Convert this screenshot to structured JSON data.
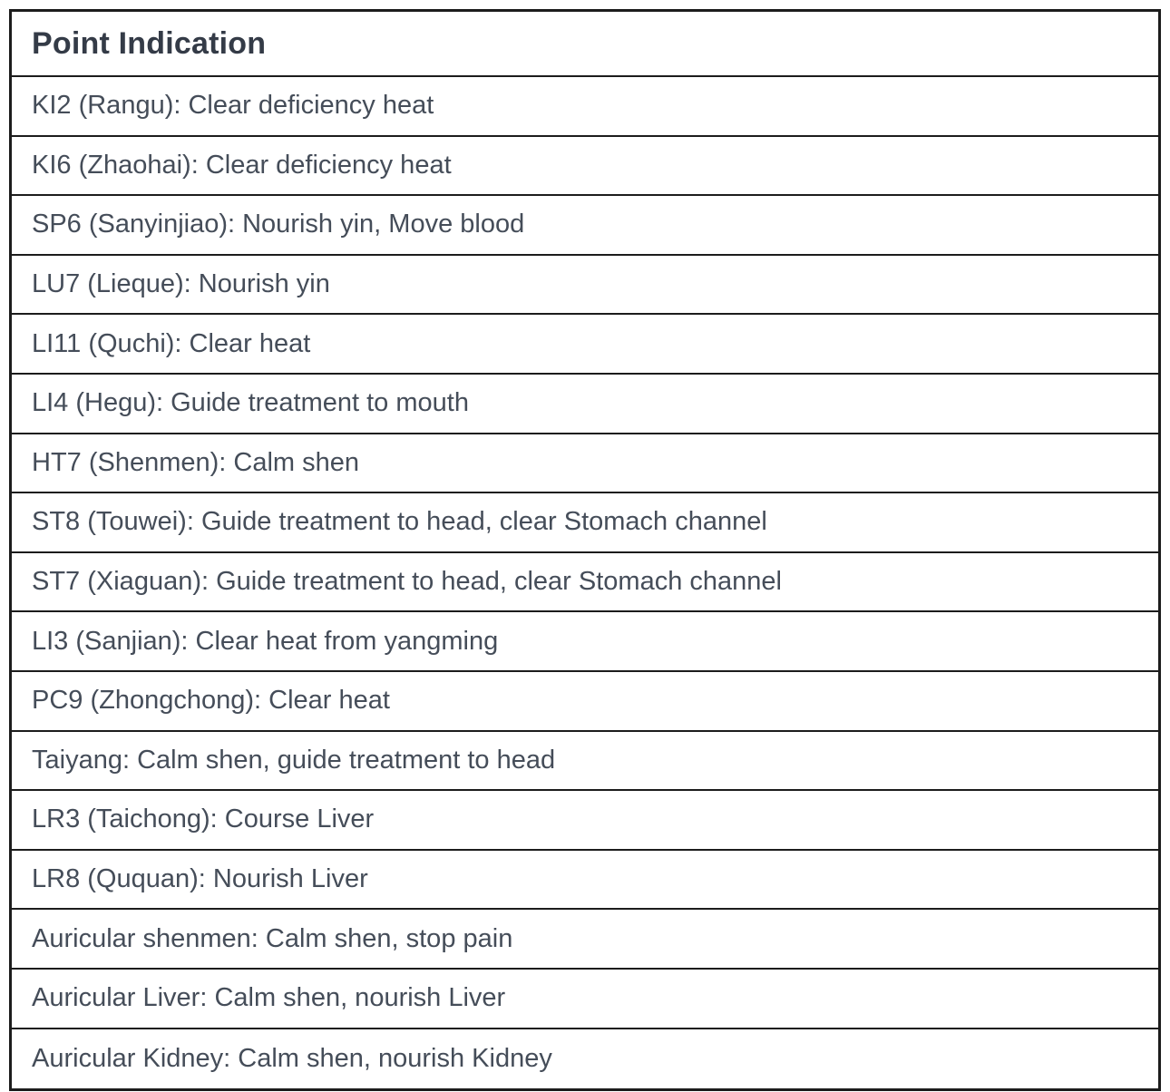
{
  "table": {
    "header": "Point Indication",
    "rows": [
      "KI2 (Rangu): Clear deficiency heat",
      "KI6 (Zhaohai): Clear deficiency heat",
      "SP6 (Sanyinjiao): Nourish yin, Move blood",
      "LU7 (Lieque): Nourish yin",
      "LI11 (Quchi): Clear heat",
      "LI4 (Hegu): Guide treatment to mouth",
      "HT7 (Shenmen): Calm shen",
      "ST8 (Touwei): Guide treatment to head, clear Stomach channel",
      "ST7 (Xiaguan): Guide treatment to head, clear Stomach channel",
      "LI3 (Sanjian): Clear heat from yangming",
      "PC9 (Zhongchong): Clear heat",
      "Taiyang: Calm shen, guide treatment to head",
      "LR3 (Taichong): Course Liver",
      "LR8 (Ququan): Nourish Liver",
      "Auricular shenmen: Calm shen, stop pain",
      "Auricular Liver: Calm shen, nourish Liver",
      "Auricular Kidney: Calm shen, nourish Kidney"
    ],
    "colors": {
      "border": "#1c1c1c",
      "header_text": "#343b47",
      "row_text": "#454d59",
      "background": "#ffffff"
    }
  }
}
